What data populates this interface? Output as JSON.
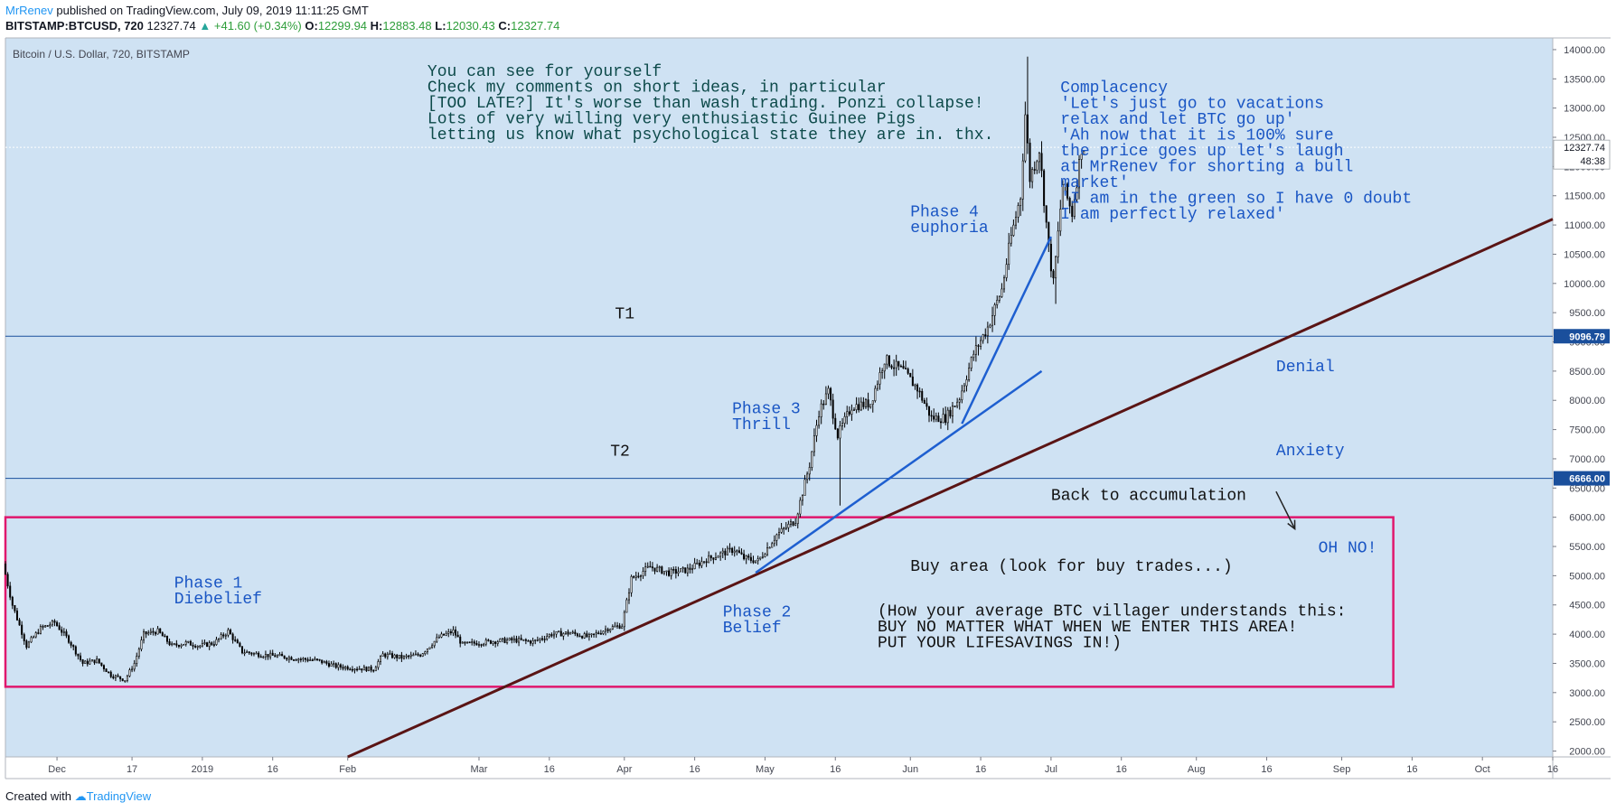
{
  "header": {
    "author": "MrRenev",
    "published": " published on TradingView.com, July 09, 2019 11:11:25 GMT",
    "symbol": "BITSTAMP:BTCUSD, 720",
    "last": "12327.74",
    "change": "+41.60 (+0.34%)",
    "o_label": "O:",
    "o": "12299.94",
    "h_label": "H:",
    "h": "12883.48",
    "l_label": "L:",
    "l": "12030.43",
    "c_label": "C:",
    "c": "12327.74"
  },
  "footer": {
    "created_with": "Created with",
    "brand": "TradingView"
  },
  "colors": {
    "background": "#cfe2f3",
    "candle": "#000000",
    "support_line": "#5a1414",
    "trend_line": "#1e5fd0",
    "box": "#e0186d",
    "hline": "#1a4f9c",
    "note_dark": "#0d4a4a",
    "note_blue": "#1a56c4",
    "note_black": "#111111"
  },
  "chart_data": {
    "type": "candlestick",
    "title": "Bitcoin / U.S. Dollar, 720, BITSTAMP",
    "ylim": [
      1900,
      14200
    ],
    "y_ticks": [
      "14000.00",
      "13500.00",
      "13000.00",
      "12500.00",
      "12000.00",
      "11500.00",
      "11000.00",
      "10500.00",
      "10000.00",
      "9500.00",
      "9000.00",
      "8500.00",
      "8000.00",
      "7500.00",
      "7000.00",
      "6500.00",
      "6000.00",
      "5500.00",
      "5000.00",
      "4500.00",
      "4000.00",
      "3500.00",
      "3000.00",
      "2500.00",
      "2000.00"
    ],
    "x_ticks": [
      {
        "label": "Dec",
        "date": "2018-12-01"
      },
      {
        "label": "17",
        "date": "2018-12-17"
      },
      {
        "label": "2019",
        "date": "2019-01-01"
      },
      {
        "label": "16",
        "date": "2019-01-16"
      },
      {
        "label": "Feb",
        "date": "2019-02-01"
      },
      {
        "label": "Mar",
        "date": "2019-03-01"
      },
      {
        "label": "16",
        "date": "2019-03-16"
      },
      {
        "label": "Apr",
        "date": "2019-04-01"
      },
      {
        "label": "16",
        "date": "2019-04-16"
      },
      {
        "label": "May",
        "date": "2019-05-01"
      },
      {
        "label": "16",
        "date": "2019-05-16"
      },
      {
        "label": "Jun",
        "date": "2019-06-01"
      },
      {
        "label": "16",
        "date": "2019-06-16"
      },
      {
        "label": "Jul",
        "date": "2019-07-01"
      },
      {
        "label": "16",
        "date": "2019-07-16"
      },
      {
        "label": "Aug",
        "date": "2019-08-01"
      },
      {
        "label": "16",
        "date": "2019-08-16"
      },
      {
        "label": "Sep",
        "date": "2019-09-01"
      },
      {
        "label": "16",
        "date": "2019-09-16"
      },
      {
        "label": "Oct",
        "date": "2019-10-01"
      },
      {
        "label": "16",
        "date": "2019-10-16"
      }
    ],
    "x_range": [
      "2018-11-20",
      "2019-10-16"
    ],
    "price_path": [
      [
        "2018-11-20",
        5200
      ],
      [
        "2018-11-22",
        4500
      ],
      [
        "2018-11-25",
        3800
      ],
      [
        "2018-11-28",
        4100
      ],
      [
        "2018-12-01",
        4200
      ],
      [
        "2018-12-04",
        3900
      ],
      [
        "2018-12-07",
        3500
      ],
      [
        "2018-12-10",
        3550
      ],
      [
        "2018-12-13",
        3300
      ],
      [
        "2018-12-16",
        3220
      ],
      [
        "2018-12-18",
        3500
      ],
      [
        "2018-12-20",
        4000
      ],
      [
        "2018-12-23",
        4050
      ],
      [
        "2018-12-26",
        3800
      ],
      [
        "2018-12-29",
        3850
      ],
      [
        "2019-01-01",
        3800
      ],
      [
        "2019-01-04",
        3850
      ],
      [
        "2019-01-07",
        4050
      ],
      [
        "2019-01-10",
        3700
      ],
      [
        "2019-01-14",
        3650
      ],
      [
        "2019-01-18",
        3620
      ],
      [
        "2019-01-22",
        3580
      ],
      [
        "2019-01-26",
        3550
      ],
      [
        "2019-01-30",
        3450
      ],
      [
        "2019-02-03",
        3420
      ],
      [
        "2019-02-07",
        3400
      ],
      [
        "2019-02-09",
        3650
      ],
      [
        "2019-02-13",
        3600
      ],
      [
        "2019-02-17",
        3650
      ],
      [
        "2019-02-21",
        3950
      ],
      [
        "2019-02-24",
        4050
      ],
      [
        "2019-02-26",
        3820
      ],
      [
        "2019-03-01",
        3850
      ],
      [
        "2019-03-05",
        3880
      ],
      [
        "2019-03-09",
        3900
      ],
      [
        "2019-03-13",
        3870
      ],
      [
        "2019-03-17",
        4000
      ],
      [
        "2019-03-21",
        4020
      ],
      [
        "2019-03-25",
        3950
      ],
      [
        "2019-03-29",
        4100
      ],
      [
        "2019-04-01",
        4150
      ],
      [
        "2019-04-03",
        4950
      ],
      [
        "2019-04-07",
        5150
      ],
      [
        "2019-04-11",
        5050
      ],
      [
        "2019-04-15",
        5100
      ],
      [
        "2019-04-19",
        5280
      ],
      [
        "2019-04-23",
        5400
      ],
      [
        "2019-04-25",
        5450
      ],
      [
        "2019-04-27",
        5300
      ],
      [
        "2019-04-30",
        5250
      ],
      [
        "2019-05-04",
        5700
      ],
      [
        "2019-05-08",
        5950
      ],
      [
        "2019-05-11",
        6900
      ],
      [
        "2019-05-13",
        7800
      ],
      [
        "2019-05-15",
        8150
      ],
      [
        "2019-05-17",
        7400
      ],
      [
        "2019-05-20",
        7900
      ],
      [
        "2019-05-24",
        7950
      ],
      [
        "2019-05-27",
        8700
      ],
      [
        "2019-05-31",
        8500
      ],
      [
        "2019-06-03",
        8200
      ],
      [
        "2019-06-06",
        7700
      ],
      [
        "2019-06-09",
        7700
      ],
      [
        "2019-06-12",
        8050
      ],
      [
        "2019-06-15",
        8800
      ],
      [
        "2019-06-18",
        9250
      ],
      [
        "2019-06-21",
        9900
      ],
      [
        "2019-06-23",
        10800
      ],
      [
        "2019-06-25",
        11500
      ],
      [
        "2019-06-26",
        12900
      ],
      [
        "2019-06-27",
        11800
      ],
      [
        "2019-06-29",
        12300
      ],
      [
        "2019-07-01",
        10600
      ],
      [
        "2019-07-02",
        10000
      ],
      [
        "2019-07-04",
        11700
      ],
      [
        "2019-07-06",
        11200
      ],
      [
        "2019-07-08",
        12327.74
      ]
    ],
    "horizontal_lines": [
      {
        "label": "T1",
        "price": 9096.79,
        "price_label": "9096.79"
      },
      {
        "label": "T2",
        "price": 6666.0,
        "price_label": "6666.00"
      }
    ],
    "current_price_label": "12327.74",
    "countdown_label": "48:38",
    "support_line": {
      "from": [
        "2019-02-01",
        1900
      ],
      "to": [
        "2019-10-16",
        11100
      ]
    },
    "trend_lines": [
      {
        "from": [
          "2019-04-29",
          5050
        ],
        "to": [
          "2019-06-29",
          8500
        ]
      },
      {
        "from": [
          "2019-06-12",
          7600
        ],
        "to": [
          "2019-07-01",
          10800
        ]
      }
    ],
    "box": {
      "from": [
        "2018-11-20",
        6000
      ],
      "to": [
        "2019-09-12",
        3100
      ]
    },
    "annotations": [
      {
        "lines": [
          "You can see for yourself",
          "Check my comments on short ideas, in particular",
          "[TOO LATE?] It's worse than wash trading. Ponzi collapse!",
          "Lots of very willing very enthusiastic Guinee Pigs",
          "letting us know what psychological state they are in. thx."
        ],
        "style": "dark",
        "date": "2019-02-18",
        "price": 13550
      },
      {
        "lines": [
          "Complacency",
          "'Let's just go to vacations",
          "relax and let BTC go up'",
          "'Ah now that it is 100% sure",
          "the price goes up let's laugh",
          "at MrRenev for shorting a bull",
          "market'",
          "'I am in the green so I have 0 doubt",
          "I am perfectly relaxed'"
        ],
        "style": "blue",
        "date": "2019-07-03",
        "price": 13270
      },
      {
        "lines": [
          "Phase 4",
          "euphoria"
        ],
        "style": "blue",
        "date": "2019-06-01",
        "price": 11150
      },
      {
        "lines": [
          "T1"
        ],
        "style": "black",
        "date": "2019-03-30",
        "price": 9400
      },
      {
        "lines": [
          "Denial"
        ],
        "style": "blue",
        "date": "2019-08-18",
        "price": 8500
      },
      {
        "lines": [
          "Phase 3",
          "Thrill"
        ],
        "style": "blue",
        "date": "2019-04-24",
        "price": 7780
      },
      {
        "lines": [
          "T2"
        ],
        "style": "black",
        "date": "2019-03-29",
        "price": 7050
      },
      {
        "lines": [
          "Anxiety"
        ],
        "style": "blue",
        "date": "2019-08-18",
        "price": 7060
      },
      {
        "lines": [
          "Back to accumulation"
        ],
        "style": "black",
        "date": "2019-07-01",
        "price": 6300
      },
      {
        "lines": [
          "OH NO!"
        ],
        "style": "blue",
        "date": "2019-08-27",
        "price": 5400
      },
      {
        "lines": [
          "Buy area (look for buy trades...)"
        ],
        "style": "black",
        "date": "2019-06-01",
        "price": 5080
      },
      {
        "lines": [
          "Phase 1",
          "Diebelief"
        ],
        "style": "blue",
        "date": "2018-12-26",
        "price": 4800
      },
      {
        "lines": [
          "Phase 2",
          "Belief"
        ],
        "style": "blue",
        "date": "2019-04-22",
        "price": 4300
      },
      {
        "lines": [
          "(How your average BTC villager understands this:",
          "BUY NO MATTER WHAT WHEN WE ENTER THIS AREA!",
          "PUT YOUR LIFESAVINGS IN!)"
        ],
        "style": "black",
        "date": "2019-05-25",
        "price": 4320
      }
    ],
    "arrow": {
      "from": [
        "2019-08-18",
        6440
      ],
      "to": [
        "2019-08-22",
        5800
      ]
    }
  }
}
